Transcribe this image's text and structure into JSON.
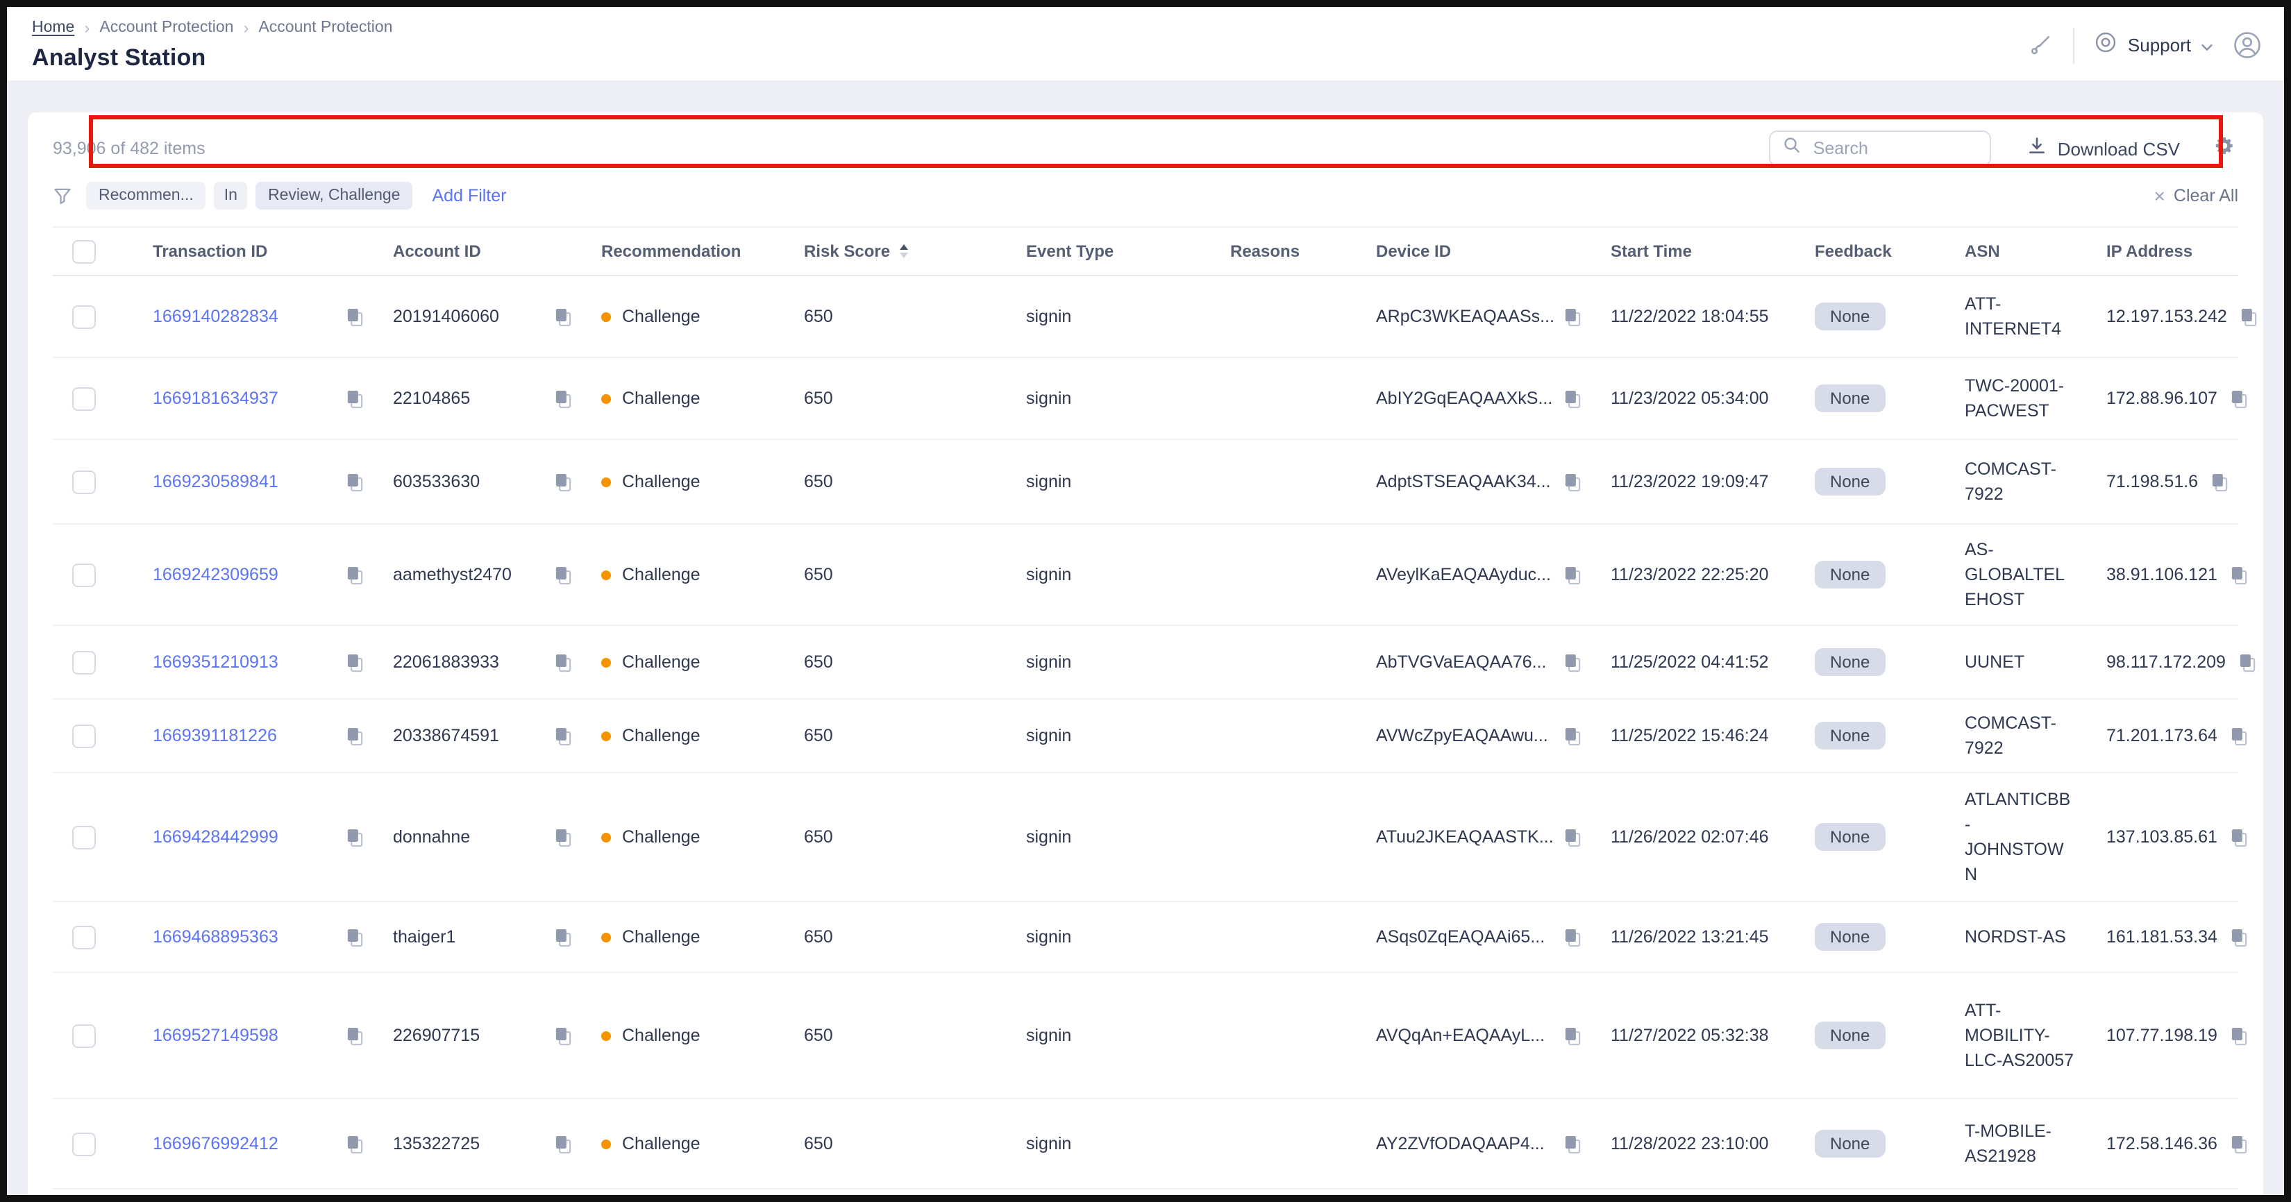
{
  "breadcrumb": {
    "items": [
      "Home",
      "Account Protection",
      "Account Protection"
    ]
  },
  "page_title": "Analyst Station",
  "topbar": {
    "support_label": "Support"
  },
  "toolbar": {
    "items_count": "93,906 of 482 items",
    "search_placeholder": "Search",
    "download_label": "Download CSV",
    "clear_all_label": "Clear All",
    "filter": {
      "field": "Recommen...",
      "operator": "In",
      "value": "Review, Challenge",
      "add_filter_label": "Add Filter"
    }
  },
  "icons": {
    "brush-icon": "diagonal pen/brush",
    "support-icon": "concentric circles",
    "chevron-down-icon": "v chevron",
    "avatar-icon": "person in circle",
    "search-icon": "magnifier",
    "download-icon": "arrow down over line",
    "gear-icon": "settings gear",
    "filter-icon": "funnel",
    "clear-icon": "x cross",
    "copy-icon": "overlapping squares",
    "sort-icon": "up/down triangles"
  },
  "colors": {
    "link_blue": "#5b74f3",
    "challenge_orange": "#f59300",
    "annotation_red": "#e8190c",
    "badge_bg": "#d8dce9",
    "page_bg": "#edeff4"
  },
  "table": {
    "columns": [
      {
        "label": "Transaction ID"
      },
      {
        "label": "Account ID"
      },
      {
        "label": "Recommendation"
      },
      {
        "label": "Risk Score",
        "sort": "asc"
      },
      {
        "label": "Event Type"
      },
      {
        "label": "Reasons"
      },
      {
        "label": "Device ID"
      },
      {
        "label": "Start Time"
      },
      {
        "label": "Feedback"
      },
      {
        "label": "ASN"
      },
      {
        "label": "IP Address"
      }
    ],
    "rows": [
      {
        "transaction_id": "1669140282834",
        "account_id": "20191406060",
        "recommendation": "Challenge",
        "risk_score": "650",
        "event_type": "signin",
        "reasons": "",
        "device_id": "ARpC3WKEAQAASs...",
        "start_time": "11/22/2022 18:04:55",
        "feedback": "None",
        "asn": "ATT-INTERNET4",
        "ip_address": "12.197.153.242"
      },
      {
        "transaction_id": "1669181634937",
        "account_id": "22104865",
        "recommendation": "Challenge",
        "risk_score": "650",
        "event_type": "signin",
        "reasons": "",
        "device_id": "AbIY2GqEAQAAXkS...",
        "start_time": "11/23/2022 05:34:00",
        "feedback": "None",
        "asn": "TWC-20001-PACWEST",
        "ip_address": "172.88.96.107"
      },
      {
        "transaction_id": "1669230589841",
        "account_id": "603533630",
        "recommendation": "Challenge",
        "risk_score": "650",
        "event_type": "signin",
        "reasons": "",
        "device_id": "AdptSTSEAQAAK34...",
        "start_time": "11/23/2022 19:09:47",
        "feedback": "None",
        "asn": "COMCAST-7922",
        "ip_address": "71.198.51.6"
      },
      {
        "transaction_id": "1669242309659",
        "account_id": "aamethyst2470",
        "recommendation": "Challenge",
        "risk_score": "650",
        "event_type": "signin",
        "reasons": "",
        "device_id": "AVeylKaEAQAAyduc...",
        "start_time": "11/23/2022 22:25:20",
        "feedback": "None",
        "asn": "AS-GLOBALTELEHOST",
        "ip_address": "38.91.106.121"
      },
      {
        "transaction_id": "1669351210913",
        "account_id": "22061883933",
        "recommendation": "Challenge",
        "risk_score": "650",
        "event_type": "signin",
        "reasons": "",
        "device_id": "AbTVGVaEAQAA76...",
        "start_time": "11/25/2022 04:41:52",
        "feedback": "None",
        "asn": "UUNET",
        "ip_address": "98.117.172.209"
      },
      {
        "transaction_id": "1669391181226",
        "account_id": "20338674591",
        "recommendation": "Challenge",
        "risk_score": "650",
        "event_type": "signin",
        "reasons": "",
        "device_id": "AVWcZpyEAQAAwu...",
        "start_time": "11/25/2022 15:46:24",
        "feedback": "None",
        "asn": "COMCAST-7922",
        "ip_address": "71.201.173.64"
      },
      {
        "transaction_id": "1669428442999",
        "account_id": "donnahne",
        "recommendation": "Challenge",
        "risk_score": "650",
        "event_type": "signin",
        "reasons": "",
        "device_id": "ATuu2JKEAQAASTK...",
        "start_time": "11/26/2022 02:07:46",
        "feedback": "None",
        "asn": "ATLANTICBB-JOHNSTOWN",
        "ip_address": "137.103.85.61"
      },
      {
        "transaction_id": "1669468895363",
        "account_id": "thaiger1",
        "recommendation": "Challenge",
        "risk_score": "650",
        "event_type": "signin",
        "reasons": "",
        "device_id": "ASqs0ZqEAQAAi65...",
        "start_time": "11/26/2022 13:21:45",
        "feedback": "None",
        "asn": "NORDST-AS",
        "ip_address": "161.181.53.34"
      },
      {
        "transaction_id": "1669527149598",
        "account_id": "226907715",
        "recommendation": "Challenge",
        "risk_score": "650",
        "event_type": "signin",
        "reasons": "",
        "device_id": "AVQqAn+EAQAAyL...",
        "start_time": "11/27/2022 05:32:38",
        "feedback": "None",
        "asn": "ATT-MOBILITY-LLC-AS20057",
        "ip_address": "107.77.198.19"
      },
      {
        "transaction_id": "1669676992412",
        "account_id": "135322725",
        "recommendation": "Challenge",
        "risk_score": "650",
        "event_type": "signin",
        "reasons": "",
        "device_id": "AY2ZVfODAQAAP4...",
        "start_time": "11/28/2022 23:10:00",
        "feedback": "None",
        "asn": "T-MOBILE-AS21928",
        "ip_address": "172.58.146.36"
      }
    ]
  }
}
